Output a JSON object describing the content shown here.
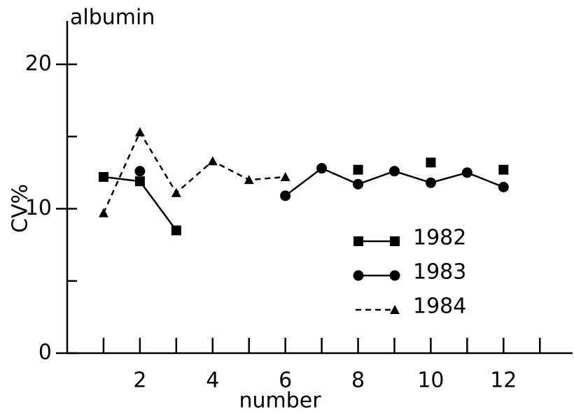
{
  "chart_data": {
    "type": "line",
    "title": "albumin",
    "xlabel": "number",
    "ylabel": "CV%",
    "x": [
      1,
      2,
      3,
      4,
      5,
      6,
      7,
      8,
      9,
      10,
      11,
      12
    ],
    "series": [
      {
        "name": "1982",
        "color": "#000000",
        "marker": "square",
        "dash": false,
        "values": [
          12.2,
          11.9,
          8.5,
          null,
          null,
          null,
          null,
          12.7,
          null,
          13.2,
          null,
          12.7
        ]
      },
      {
        "name": "1983",
        "color": "#000000",
        "marker": "circle",
        "dash": false,
        "values": [
          null,
          12.6,
          null,
          null,
          null,
          10.9,
          12.8,
          11.7,
          12.6,
          11.8,
          12.5,
          11.5
        ]
      },
      {
        "name": "1984",
        "color": "#000000",
        "marker": "triangle",
        "dash": true,
        "values": [
          9.7,
          15.3,
          11.1,
          13.3,
          12.0,
          12.2,
          null,
          null,
          null,
          null,
          null,
          null
        ]
      }
    ],
    "xlim": [
      0,
      13.9
    ],
    "ylim": [
      0,
      23
    ],
    "xticks": [
      2,
      4,
      6,
      8,
      10,
      12
    ],
    "xminor": [
      1,
      3,
      5,
      7,
      9,
      11,
      13
    ],
    "yticks": [
      0,
      10,
      20
    ],
    "yminor": [
      5,
      15
    ],
    "legend": "lower right"
  }
}
